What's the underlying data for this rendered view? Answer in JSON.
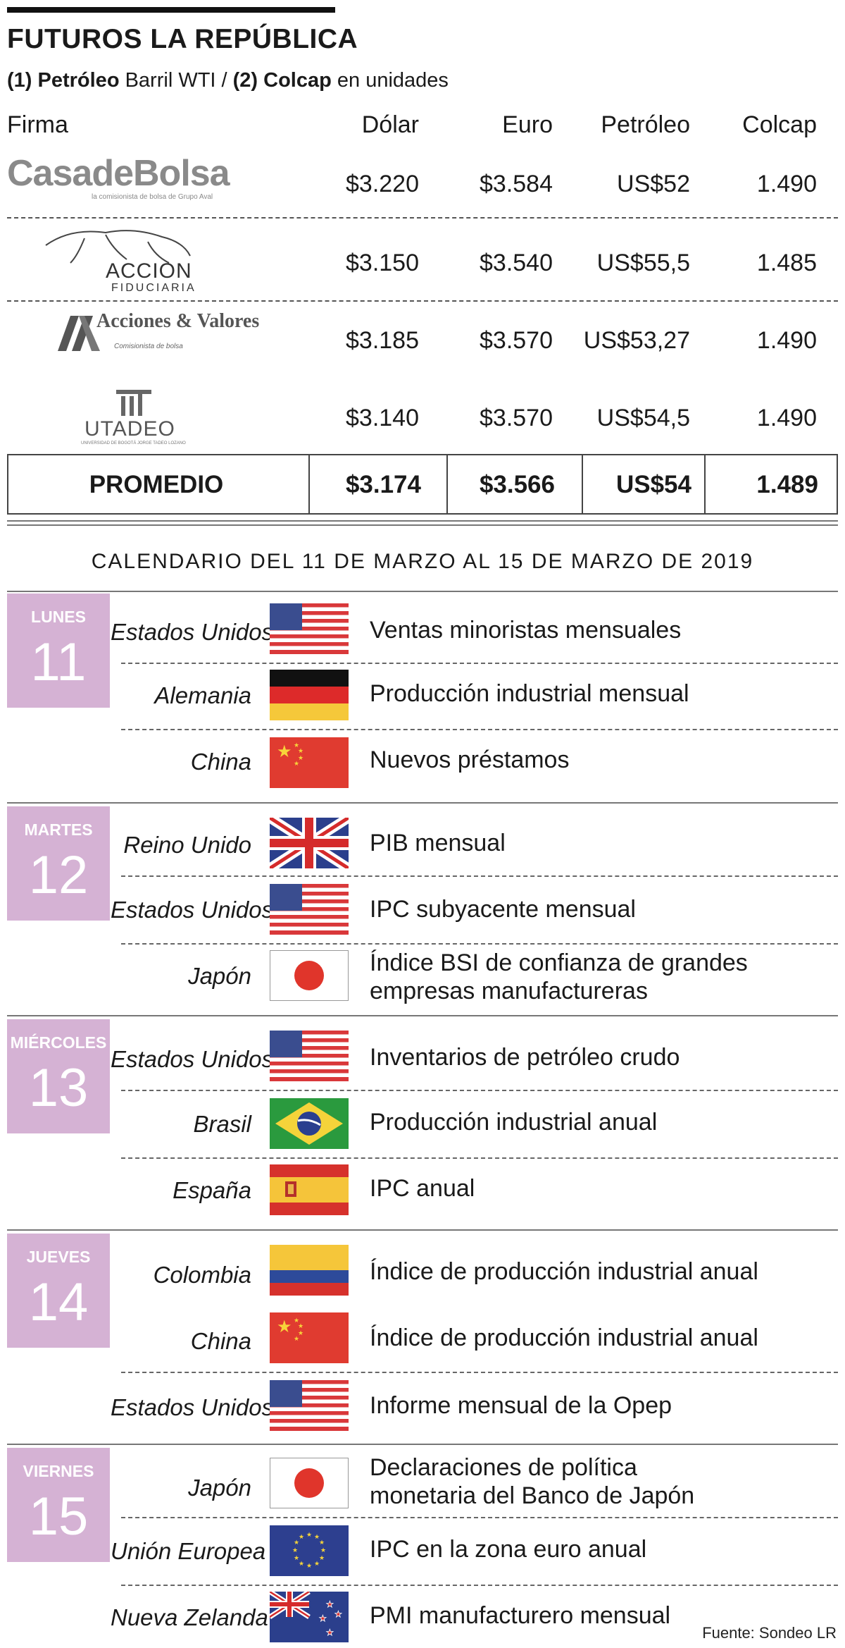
{
  "header": {
    "title": "FUTUROS LA REPÚBLICA",
    "subtitle_p1": "(1) Petróleo",
    "subtitle_p2": " Barril WTI / ",
    "subtitle_p3": "(2) Colcap",
    "subtitle_p4": " en unidades"
  },
  "table": {
    "columns": [
      "Firma",
      "Dólar",
      "Euro",
      "Petróleo",
      "Colcap"
    ],
    "rows": [
      {
        "firm": "CasadeBolsa",
        "firm_sub": "la comisionista de bolsa de Grupo Aval",
        "dolar": "$3.220",
        "euro": "$3.584",
        "petroleo": "US$52",
        "colcap": "1.490"
      },
      {
        "firm": "ACCION",
        "firm_sub": "FIDUCIARIA",
        "dolar": "$3.150",
        "euro": "$3.540",
        "petroleo": "US$55,5",
        "colcap": "1.485"
      },
      {
        "firm": "Acciones & Valores",
        "firm_sub": "Comisionista de bolsa",
        "dolar": "$3.185",
        "euro": "$3.570",
        "petroleo": "US$53,27",
        "colcap": "1.490"
      },
      {
        "firm": "UTADEO",
        "firm_sub": "UNIVERSIDAD DE BOGOTÁ JORGE TADEO LOZANO",
        "dolar": "$3.140",
        "euro": "$3.570",
        "petroleo": "US$54,5",
        "colcap": "1.490"
      }
    ],
    "average": {
      "label": "PROMEDIO",
      "dolar": "$3.174",
      "euro": "$3.566",
      "petroleo": "US$54",
      "colcap": "1.489"
    }
  },
  "calendar": {
    "title": "CALENDARIO DEL 11 DE MARZO AL 15 DE MARZO DE 2019",
    "days": [
      {
        "name": "LUNES",
        "num": "11",
        "events": [
          {
            "country": "Estados Unidos",
            "flag": "usa-flag-icon",
            "event": "Ventas minoristas mensuales"
          },
          {
            "country": "Alemania",
            "flag": "germany-flag-icon",
            "event": "Producción industrial mensual"
          },
          {
            "country": "China",
            "flag": "china-flag-icon",
            "event": "Nuevos préstamos"
          }
        ]
      },
      {
        "name": "MARTES",
        "num": "12",
        "events": [
          {
            "country": "Reino Unido",
            "flag": "uk-flag-icon",
            "event": "PIB mensual"
          },
          {
            "country": "Estados Unidos",
            "flag": "usa-flag-icon",
            "event": "IPC subyacente mensual"
          },
          {
            "country": "Japón",
            "flag": "japan-flag-icon",
            "event": "Índice BSI de confianza de grandes",
            "event2": "empresas manufactureras"
          }
        ]
      },
      {
        "name": "MIÉRCOLES",
        "num": "13",
        "events": [
          {
            "country": "Estados Unidos",
            "flag": "usa-flag-icon",
            "event": "Inventarios de petróleo crudo"
          },
          {
            "country": "Brasil",
            "flag": "brazil-flag-icon",
            "event": "Producción industrial anual"
          },
          {
            "country": "España",
            "flag": "spain-flag-icon",
            "event": "IPC anual"
          }
        ]
      },
      {
        "name": "JUEVES",
        "num": "14",
        "events": [
          {
            "country": "Colombia",
            "flag": "colombia-flag-icon",
            "event": "Índice de producción industrial anual"
          },
          {
            "country": "China",
            "flag": "china-flag-icon",
            "event": "Índice de producción industrial anual"
          },
          {
            "country": "Estados Unidos",
            "flag": "usa-flag-icon",
            "event": "Informe mensual de la Opep"
          }
        ]
      },
      {
        "name": "VIERNES",
        "num": "15",
        "events": [
          {
            "country": "Japón",
            "flag": "japan-flag-icon",
            "event": "Declaraciones de política",
            "event2": "monetaria del Banco de Japón"
          },
          {
            "country": "Unión Europea",
            "flag": "eu-flag-icon",
            "event": "IPC en la zona euro anual"
          },
          {
            "country": "Nueva Zelanda",
            "flag": "new-zealand-flag-icon",
            "event": "PMI manufacturero mensual"
          }
        ]
      }
    ]
  },
  "footer": {
    "source": "Fuente: Sondeo LR"
  },
  "colors": {
    "day_box": "#d5b2d4",
    "text": "#1a1a1a"
  }
}
